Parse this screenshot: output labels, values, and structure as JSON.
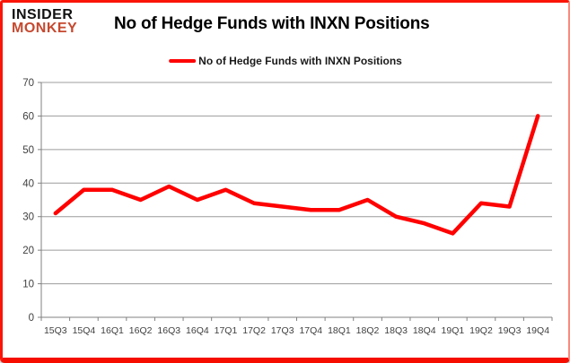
{
  "logo": {
    "line1": "INSIDER",
    "line2": "MONKEY"
  },
  "header": {
    "title": "No of Hedge Funds with INXN Positions"
  },
  "legend": {
    "label": "No of Hedge Funds with INXN Positions"
  },
  "colors": {
    "series_line": "#ff0000",
    "gridline": "#9c9c9c",
    "axis": "#808080",
    "axis_text": "#3f3f3f",
    "frame_red": "#fb1507",
    "logo_black": "#111111",
    "logo_red": "#c6492f"
  },
  "chart_data": {
    "type": "line",
    "title": "No of Hedge Funds with INXN Positions",
    "categories": [
      "15Q3",
      "15Q4",
      "16Q1",
      "16Q2",
      "16Q3",
      "16Q4",
      "17Q1",
      "17Q2",
      "17Q3",
      "17Q4",
      "18Q1",
      "18Q2",
      "18Q3",
      "18Q4",
      "19Q1",
      "19Q2",
      "19Q3",
      "19Q4"
    ],
    "series": [
      {
        "name": "No of Hedge Funds with INXN Positions",
        "color": "#ff0000",
        "values": [
          31,
          38,
          38,
          35,
          39,
          35,
          38,
          34,
          33,
          32,
          32,
          35,
          30,
          28,
          25,
          34,
          33,
          60
        ]
      }
    ],
    "xlabel": "",
    "ylabel": "",
    "ylim": [
      0,
      70
    ],
    "yticks": [
      0,
      10,
      20,
      30,
      40,
      50,
      60,
      70
    ],
    "grid": true,
    "legend_position": "top-center"
  }
}
